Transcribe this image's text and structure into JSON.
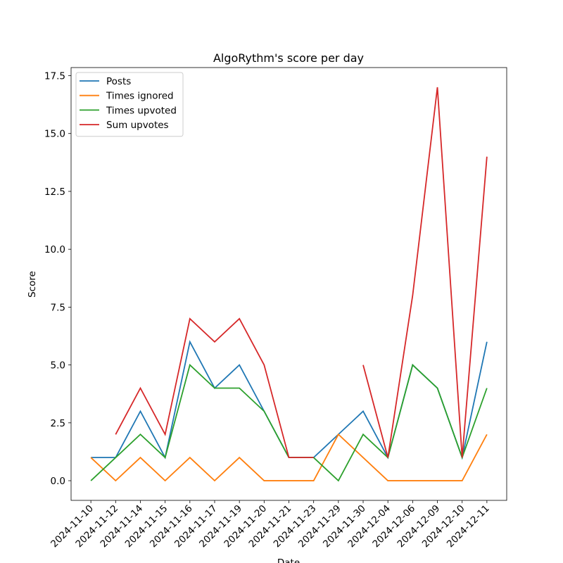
{
  "chart_data": {
    "type": "line",
    "title": "AlgoRythm's score per day",
    "x_label": "Date",
    "y_label": "Score",
    "categories": [
      "2024-11-10",
      "2024-11-12",
      "2024-11-14",
      "2024-11-15",
      "2024-11-16",
      "2024-11-17",
      "2024-11-19",
      "2024-11-20",
      "2024-11-21",
      "2024-11-23",
      "2024-11-29",
      "2024-11-30",
      "2024-12-04",
      "2024-12-06",
      "2024-12-09",
      "2024-12-10",
      "2024-12-11"
    ],
    "series": [
      {
        "name": "Posts",
        "color": "#1f77b4",
        "values": [
          1,
          1,
          3,
          1,
          6,
          4,
          5,
          3,
          1,
          1,
          2,
          3,
          1,
          5,
          4,
          1,
          6
        ]
      },
      {
        "name": "Times ignored",
        "color": "#ff7f0e",
        "values": [
          1,
          0,
          1,
          0,
          1,
          0,
          1,
          0,
          0,
          0,
          2,
          1,
          0,
          0,
          0,
          0,
          2
        ]
      },
      {
        "name": "Times upvoted",
        "color": "#2ca02c",
        "values": [
          0,
          1,
          2,
          1,
          5,
          4,
          4,
          3,
          1,
          1,
          0,
          2,
          1,
          5,
          4,
          1,
          4
        ]
      },
      {
        "name": "Sum upvotes",
        "color": "#d62728",
        "values": [
          null,
          2,
          4,
          2,
          7,
          6,
          7,
          5,
          1,
          1,
          null,
          5,
          1,
          8,
          17,
          1,
          14
        ]
      }
    ],
    "ylim": [
      -0.85,
      17.85
    ],
    "yticks": [
      {
        "value": 0,
        "label": "0.0"
      },
      2.5,
      {
        "value": 5,
        "label": "5.0"
      },
      7.5,
      {
        "value": 10,
        "label": "10.0"
      },
      12.5,
      {
        "value": 15,
        "label": "15.0"
      },
      17.5
    ],
    "legend": "upper left"
  }
}
